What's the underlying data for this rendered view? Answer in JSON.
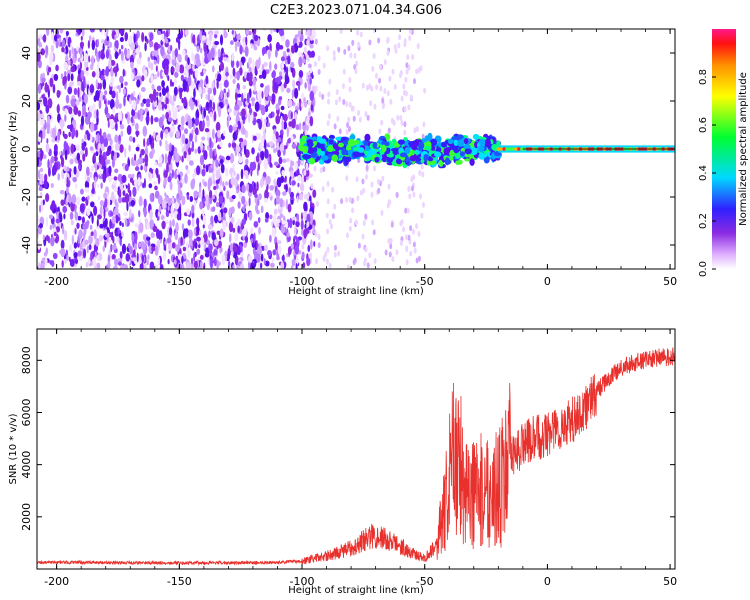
{
  "title": "C2E3.2023.071.04.34.G06",
  "chart_data": [
    {
      "type": "heatmap",
      "name": "spectrogram",
      "xlabel": "Height of straight line (km)",
      "ylabel": "Frequency (Hz)",
      "xlim": [
        -208,
        52
      ],
      "ylim": [
        -50,
        50
      ],
      "xticks": [
        -200,
        -150,
        -100,
        -50,
        0,
        50
      ],
      "yticks": [
        -40,
        -20,
        0,
        20,
        40
      ],
      "colorbar": {
        "label": "Normalized spectral amplitude",
        "range": [
          0,
          1
        ],
        "ticks": [
          "0.0",
          "0.2",
          "0.4",
          "0.6",
          "0.8"
        ]
      },
      "regions": [
        {
          "x": [
            -208,
            -100
          ],
          "freq": [
            -50,
            50
          ],
          "amplitude": [
            0.05,
            0.25
          ],
          "pattern": "scattered noise"
        },
        {
          "x": [
            -100,
            -20
          ],
          "freq": [
            -5,
            5
          ],
          "amplitude": [
            0.2,
            0.5
          ],
          "pattern": "broadened carrier"
        },
        {
          "x": [
            -20,
            52
          ],
          "freq": [
            -1.5,
            1.5
          ],
          "amplitude": [
            0.5,
            1.0
          ],
          "pattern": "narrow carrier"
        }
      ]
    },
    {
      "type": "line",
      "name": "snr",
      "xlabel": "Height of straight line (km)",
      "ylabel": "SNR (10 * v/v)",
      "xlim": [
        -208,
        52
      ],
      "ylim": [
        0,
        9200
      ],
      "xticks": [
        -200,
        -150,
        -100,
        -50,
        0,
        50
      ],
      "yticks": [
        2000,
        4000,
        6000,
        8000
      ],
      "color": "#e8302c",
      "x": [
        -208,
        -190,
        -170,
        -150,
        -130,
        -110,
        -100,
        -90,
        -80,
        -75,
        -70,
        -65,
        -60,
        -55,
        -50,
        -45,
        -42,
        -38,
        -35,
        -30,
        -25,
        -20,
        -15,
        -10,
        -5,
        0,
        5,
        10,
        15,
        20,
        25,
        30,
        35,
        40,
        45,
        52
      ],
      "y": [
        250,
        250,
        240,
        230,
        240,
        250,
        300,
        500,
        800,
        1100,
        1300,
        1100,
        900,
        600,
        400,
        1000,
        2200,
        4500,
        3800,
        2800,
        3100,
        3000,
        4200,
        4800,
        5000,
        5200,
        5400,
        5700,
        6100,
        6800,
        7300,
        7700,
        7900,
        8000,
        8100,
        8150
      ]
    }
  ]
}
